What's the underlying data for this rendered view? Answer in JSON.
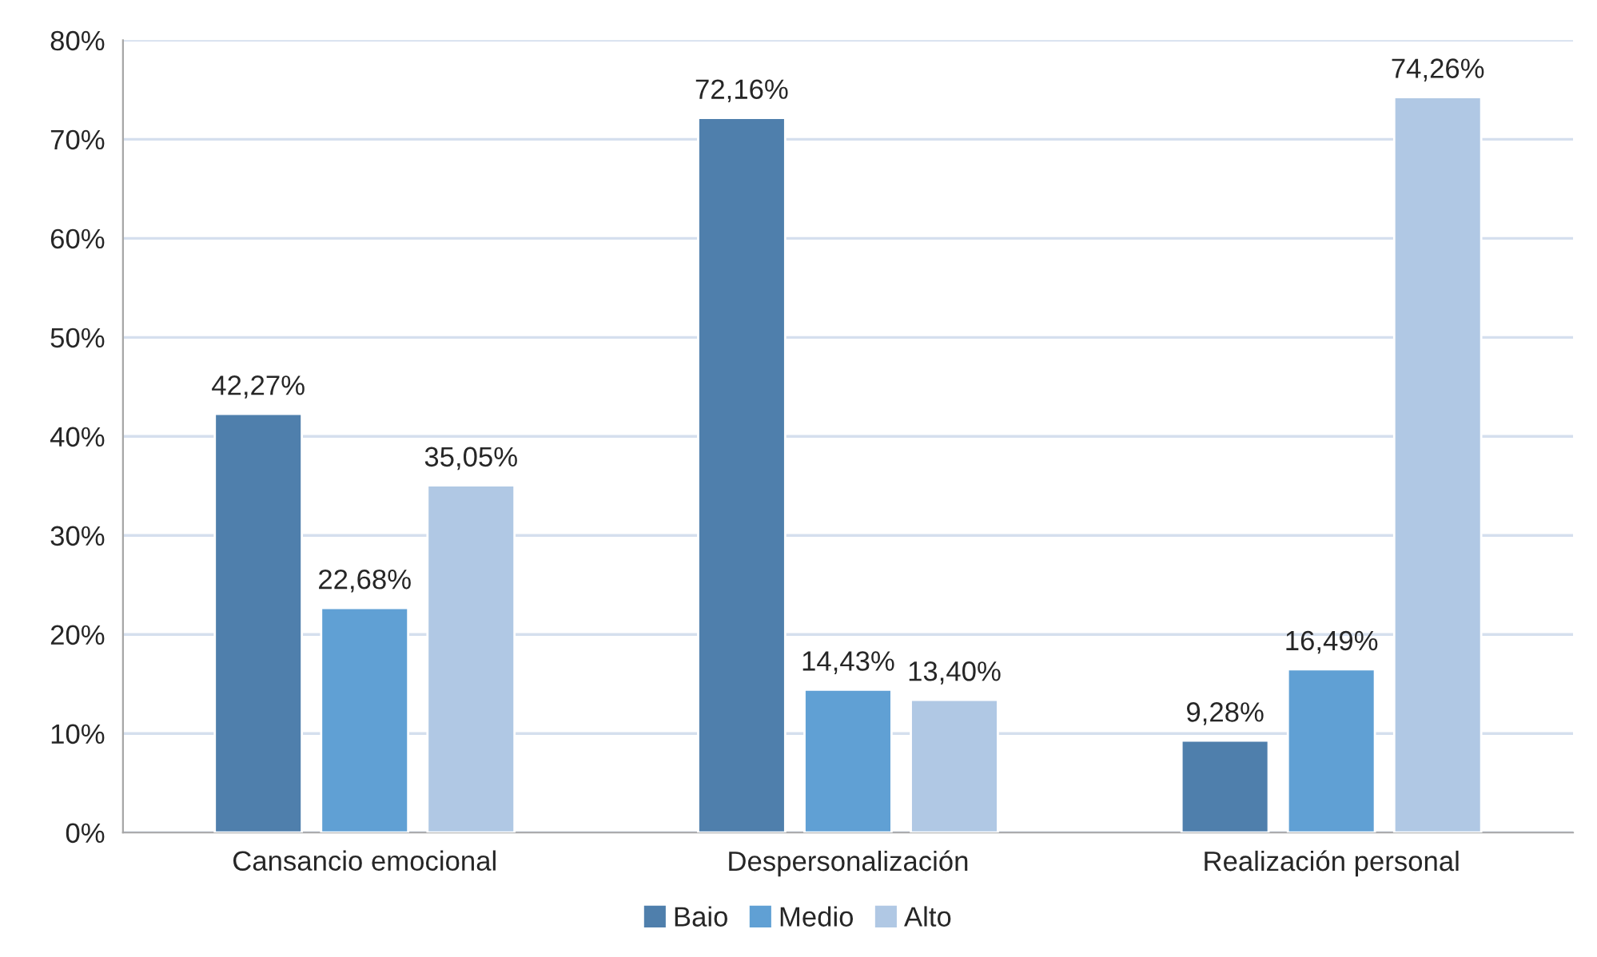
{
  "chart_data": {
    "type": "bar",
    "categories": [
      "Cansancio emocional",
      "Despersonalización",
      "Realización personal"
    ],
    "series": [
      {
        "name": "Baio",
        "color": "#4f7fac",
        "values": [
          42.27,
          72.16,
          9.28
        ],
        "value_labels": [
          "42,27%",
          "72,16%",
          "9,28%"
        ]
      },
      {
        "name": "Medio",
        "color": "#60a0d4",
        "values": [
          22.68,
          14.43,
          16.49
        ],
        "value_labels": [
          "22,68%",
          "14,43%",
          "16,49%"
        ]
      },
      {
        "name": "Alto",
        "color": "#b0c8e4",
        "values": [
          35.05,
          13.4,
          74.26
        ],
        "value_labels": [
          "35,05%",
          "13,40%",
          "74,26%"
        ]
      }
    ],
    "ylim": [
      0,
      80
    ],
    "yticks": [
      {
        "value": 0,
        "label": "0%"
      },
      {
        "value": 10,
        "label": "10%"
      },
      {
        "value": 20,
        "label": "20%"
      },
      {
        "value": 30,
        "label": "30%"
      },
      {
        "value": 40,
        "label": "40%"
      },
      {
        "value": 50,
        "label": "50%"
      },
      {
        "value": 60,
        "label": "60%"
      },
      {
        "value": 70,
        "label": "70%"
      },
      {
        "value": 80,
        "label": "80%"
      }
    ],
    "grid": "y",
    "legend": "bottom"
  }
}
